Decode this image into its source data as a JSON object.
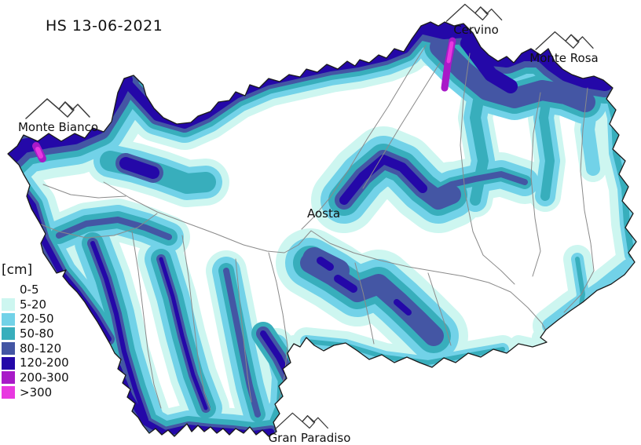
{
  "title": "HS 13-06-2021",
  "legend": {
    "unit_label": "[cm]",
    "classes": [
      {
        "label": "0-5",
        "color": "#ffffff"
      },
      {
        "label": "5-20",
        "color": "#cdf6f0"
      },
      {
        "label": "20-50",
        "color": "#72d2e8"
      },
      {
        "label": "50-80",
        "color": "#38aebc"
      },
      {
        "label": "80-120",
        "color": "#4456a4"
      },
      {
        "label": "120-200",
        "color": "#2408a8"
      },
      {
        "label": "200-300",
        "color": "#a81ac8"
      },
      {
        "label": ">300",
        "color": "#e838e0"
      }
    ]
  },
  "map": {
    "labels": {
      "monte_bianco": "Monte Bianco",
      "cervino": "Cervino",
      "monte_rosa": "Monte Rosa",
      "gran_paradiso": "Gran Paradiso",
      "aosta": "Aosta"
    },
    "icons": {
      "mountain": "mountain-peak-line-drawing"
    },
    "line_colors": {
      "region_outline": "#1a1a1a",
      "rivers": "#8a8a8a"
    }
  }
}
